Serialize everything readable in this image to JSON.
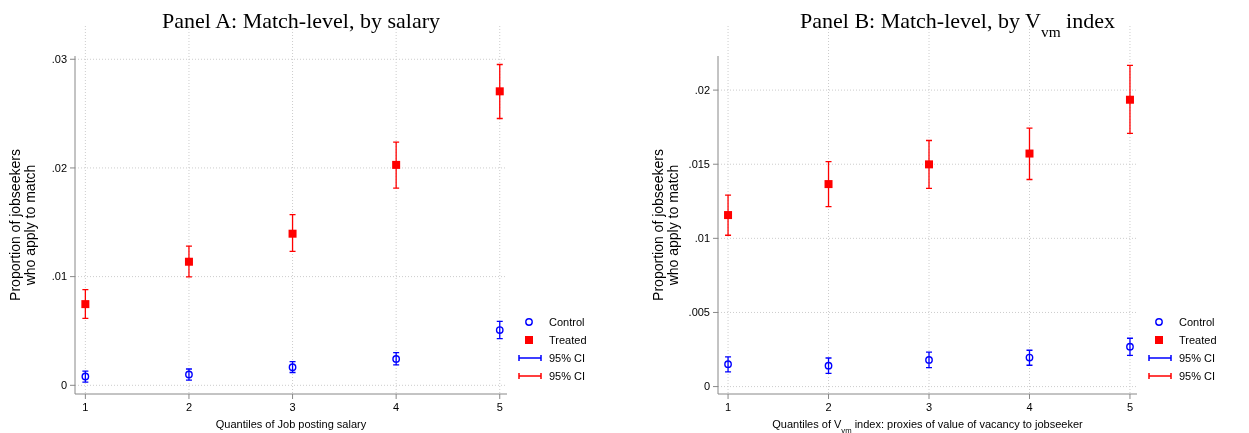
{
  "chart_data": [
    {
      "type": "scatter",
      "title": "Panel A: Match-level, by salary",
      "xlabel": "Quantiles of Job posting salary",
      "ylabel": "Proportion of jobseekers\nwho apply to match",
      "x": [
        1,
        2,
        3,
        4,
        5
      ],
      "xlim": [
        0.9,
        5.07
      ],
      "xticks": [
        1,
        2,
        3,
        4,
        5
      ],
      "ylim": [
        -0.0008,
        0.0303
      ],
      "yticks": [
        0,
        {
          "value": 0.01,
          "label": ".01"
        },
        {
          "value": 0.02,
          "label": ".02"
        },
        {
          "value": 0.03,
          "label": ".03"
        }
      ],
      "grid": true,
      "legend": "bottom right",
      "annotations": [
        "95% CI",
        "95% CI"
      ],
      "series": [
        {
          "name": "Control",
          "color": "#0000ff",
          "marker": "circle",
          "values": [
            0.00081,
            0.001,
            0.00166,
            0.00243,
            0.00508
          ],
          "errors": [
            [
              0.0003,
              0.0013
            ],
            [
              0.00048,
              0.0015
            ],
            [
              0.00118,
              0.00217
            ],
            [
              0.00188,
              0.003
            ],
            [
              0.0043,
              0.00589
            ]
          ]
        },
        {
          "name": "Treated",
          "color": "#ff0000",
          "marker": "square",
          "values": [
            0.00747,
            0.01137,
            0.01395,
            0.02028,
            0.02705
          ],
          "errors": [
            [
              0.00615,
              0.0088
            ],
            [
              0.00997,
              0.0128
            ],
            [
              0.01233,
              0.0157
            ],
            [
              0.01815,
              0.02238
            ],
            [
              0.02455,
              0.02952
            ]
          ]
        }
      ]
    },
    {
      "type": "scatter",
      "title": "Panel B: Match-level, by V$_{vm}$ index",
      "xlabel": "Quantiles of V$_{vm}$ index: proxies of value of vacancy to jobseeker",
      "ylabel": "Proportion of jobseekers\nwho apply to match",
      "x": [
        1,
        2,
        3,
        4,
        5
      ],
      "xlim": [
        0.9,
        5.07
      ],
      "xticks": [
        1,
        2,
        3,
        4,
        5
      ],
      "ylim": [
        -0.0005,
        0.0223
      ],
      "yticks": [
        0,
        {
          "value": 0.005,
          "label": ".005"
        },
        {
          "value": 0.01,
          "label": ".01"
        },
        {
          "value": 0.015,
          "label": ".015"
        },
        {
          "value": 0.02,
          "label": ".02"
        }
      ],
      "grid": true,
      "legend": "bottom right",
      "annotations": [
        "95% CI",
        "95% CI"
      ],
      "series": [
        {
          "name": "Control",
          "color": "#0000ff",
          "marker": "circle",
          "values": [
            0.00151,
            0.00141,
            0.0018,
            0.00196,
            0.00269
          ],
          "errors": [
            [
              0.00099,
              0.002
            ],
            [
              0.00089,
              0.00193
            ],
            [
              0.00128,
              0.00232
            ],
            [
              0.00144,
              0.00245
            ],
            [
              0.00211,
              0.00326
            ]
          ]
        },
        {
          "name": "Treated",
          "color": "#ff0000",
          "marker": "square",
          "values": [
            0.01157,
            0.01366,
            0.01499,
            0.01572,
            0.01935
          ],
          "errors": [
            [
              0.01021,
              0.01292
            ],
            [
              0.01214,
              0.01517
            ],
            [
              0.01337,
              0.0166
            ],
            [
              0.01397,
              0.01744
            ],
            [
              0.01708,
              0.02167
            ]
          ]
        }
      ]
    }
  ]
}
